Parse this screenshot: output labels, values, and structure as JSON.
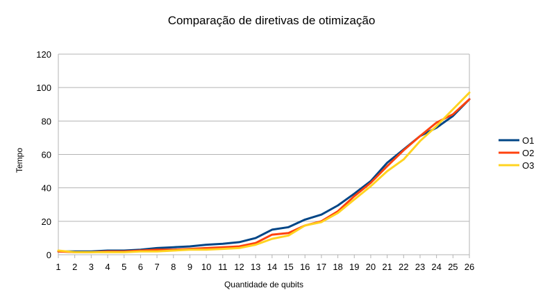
{
  "chart_data": {
    "type": "line",
    "title": "Comparação de diretivas de otimização",
    "xlabel": "Quantidade de qubits",
    "ylabel": "Tempo",
    "x": [
      1,
      2,
      3,
      4,
      5,
      6,
      7,
      8,
      9,
      10,
      11,
      12,
      13,
      14,
      15,
      16,
      17,
      18,
      19,
      20,
      21,
      22,
      23,
      24,
      25,
      26
    ],
    "ylim": [
      0,
      120
    ],
    "yticks": [
      0,
      20,
      40,
      60,
      80,
      100,
      120
    ],
    "grid": true,
    "legend_position": "right",
    "series": [
      {
        "name": "O1",
        "color": "#004586",
        "values": [
          2,
          2,
          2,
          2.5,
          2.5,
          3,
          4,
          4.5,
          5,
          6,
          6.5,
          7.5,
          10,
          15,
          16.5,
          21,
          24,
          29.5,
          36.5,
          44,
          55,
          63,
          71,
          76,
          83,
          93
        ]
      },
      {
        "name": "O2",
        "color": "#ff420e",
        "values": [
          2,
          1.5,
          1.5,
          2,
          2,
          2.5,
          3,
          3,
          3.5,
          4,
          4.5,
          5,
          7,
          12,
          13,
          17.5,
          20,
          26,
          35,
          43,
          53,
          62.5,
          71,
          79,
          84,
          93
        ]
      },
      {
        "name": "O3",
        "color": "#ffd320",
        "values": [
          2.5,
          1.5,
          1.5,
          1.5,
          1.5,
          2,
          2,
          2.5,
          3,
          3,
          3.5,
          4,
          6,
          9.5,
          11.5,
          17.5,
          19.5,
          25,
          33,
          41,
          50,
          57,
          68,
          77,
          87,
          97
        ]
      }
    ]
  }
}
